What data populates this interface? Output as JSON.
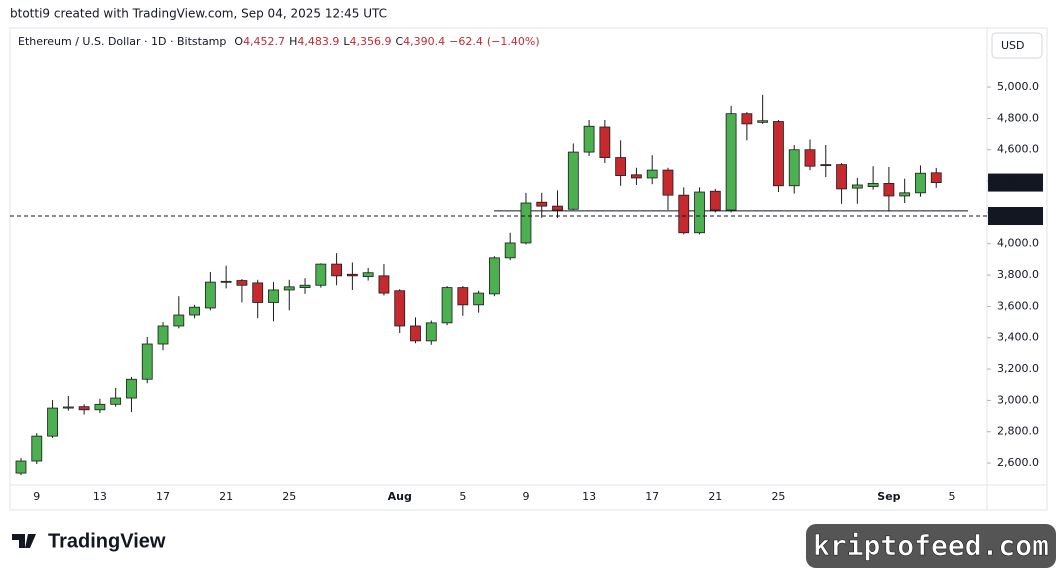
{
  "header": {
    "attribution": "btotti9 created with TradingView.com, Sep 04, 2025 12:45 UTC"
  },
  "chart_data": {
    "type": "candlestick",
    "title": "Ethereum / U.S. Dollar · 1D · Bitstamp",
    "legend_values": [
      {
        "key": "O",
        "value": 4452.7,
        "label": "4,452.7"
      },
      {
        "key": "H",
        "value": 4483.9,
        "label": "4,483.9"
      },
      {
        "key": "L",
        "value": 4356.9,
        "label": "4,356.9"
      },
      {
        "key": "C",
        "value": 4390.4,
        "label": "4,390.4"
      },
      {
        "key": null,
        "value": -62.4,
        "label": "−62.4"
      },
      {
        "key": null,
        "value": -1.4,
        "label": "(−1.40%)"
      }
    ],
    "currency": "USD",
    "categories": [
      null,
      "9",
      null,
      null,
      null,
      "13",
      null,
      null,
      null,
      "17",
      null,
      null,
      null,
      "21",
      null,
      null,
      null,
      "25",
      null,
      null,
      null,
      null,
      null,
      null,
      "Aug",
      null,
      null,
      null,
      "5",
      null,
      null,
      null,
      "9",
      null,
      null,
      null,
      "13",
      null,
      null,
      null,
      "17",
      null,
      null,
      null,
      "21",
      null,
      null,
      null,
      "25",
      null,
      null,
      null,
      null,
      null,
      null,
      "Sep",
      null,
      null,
      null,
      "5"
    ],
    "open": [
      2536,
      2613,
      2772,
      2951,
      2960,
      2940,
      2975,
      3015,
      3135,
      3360,
      3475,
      3545,
      3590,
      3755,
      3765,
      3750,
      3625,
      3705,
      3720,
      3735,
      3870,
      3805,
      3790,
      3795,
      3700,
      3475,
      3380,
      3495,
      3720,
      3610,
      3680,
      3910,
      4005,
      4265,
      4240,
      4220,
      4585,
      4745,
      4550,
      4440,
      4420,
      4470,
      4310,
      4070,
      4335,
      4215,
      4830,
      4775,
      4780,
      4370,
      4600,
      4505,
      4505,
      4355,
      4365,
      4385,
      4305,
      4325,
      4452.7,
      null
    ],
    "high": [
      2632,
      2791,
      3002,
      3028,
      2975,
      3010,
      3080,
      3150,
      3405,
      3500,
      3665,
      3610,
      3820,
      3860,
      3775,
      3770,
      3755,
      3770,
      3780,
      3875,
      3940,
      3880,
      3845,
      3870,
      3710,
      3530,
      3510,
      3730,
      3730,
      3700,
      3920,
      4070,
      4325,
      4325,
      4340,
      4640,
      4790,
      4790,
      4660,
      4485,
      4565,
      4485,
      4360,
      4360,
      4350,
      4880,
      4840,
      4950,
      4790,
      4630,
      4665,
      4630,
      4515,
      4420,
      4495,
      4490,
      4415,
      4500,
      4483.9,
      null
    ],
    "low": [
      2523,
      2594,
      2760,
      2935,
      2910,
      2920,
      2960,
      2925,
      3110,
      3320,
      3460,
      3525,
      3575,
      3715,
      3625,
      3525,
      3505,
      3575,
      3680,
      3720,
      3735,
      3705,
      3765,
      3670,
      3430,
      3365,
      3355,
      3480,
      3540,
      3560,
      3665,
      3895,
      3995,
      4165,
      4165,
      4215,
      4560,
      4515,
      4370,
      4375,
      4380,
      4215,
      4060,
      4060,
      4200,
      4200,
      4660,
      4765,
      4330,
      4320,
      4470,
      4425,
      4255,
      4255,
      4345,
      4205,
      4260,
      4300,
      4356.9,
      null
    ],
    "close": [
      2613,
      2772,
      2951,
      2958,
      2940,
      2975,
      3015,
      3135,
      3360,
      3475,
      3545,
      3595,
      3755,
      3760,
      3735,
      3625,
      3705,
      3725,
      3735,
      3870,
      3795,
      3795,
      3815,
      3685,
      3475,
      3380,
      3495,
      3720,
      3610,
      3685,
      3910,
      4005,
      4260,
      4240,
      4215,
      4585,
      4750,
      4550,
      4435,
      4420,
      4470,
      4310,
      4070,
      4330,
      4215,
      4830,
      4765,
      4785,
      4370,
      4600,
      4495,
      4500,
      4350,
      4375,
      4385,
      4305,
      4325,
      4450,
      4390.4,
      null
    ],
    "up_color": "#4caf50",
    "down_color": "#c62a2f",
    "ylim": [
      2460,
      5377
    ],
    "yticks": [
      {
        "value": 2600,
        "label": "2,600.0"
      },
      {
        "value": 2800,
        "label": "2,800.0"
      },
      {
        "value": 3000,
        "label": "3,000.0"
      },
      {
        "value": 3200,
        "label": "3,200.0"
      },
      {
        "value": 3400,
        "label": "3,400.0"
      },
      {
        "value": 3600,
        "label": "3,600.0"
      },
      {
        "value": 3800,
        "label": "3,800.0"
      },
      {
        "value": 4000,
        "label": "4,000.0"
      },
      {
        "value": 4200,
        "label": "4,200.0"
      },
      {
        "value": 4400,
        "label": "4,400.0"
      },
      {
        "value": 4600,
        "label": "4,600.0"
      },
      {
        "value": 4800,
        "label": "4,800.0"
      },
      {
        "value": 5000,
        "label": "5,000.0"
      }
    ],
    "price_labels": [
      {
        "value": 4390.4,
        "label": "4,390.4",
        "dashed": false
      },
      {
        "value": 4176.9,
        "label": "4,176.9",
        "dashed": true
      }
    ],
    "level_line": 4210
  },
  "footer": {
    "logo": "TradingView",
    "watermark": "kriptofeed.com"
  }
}
